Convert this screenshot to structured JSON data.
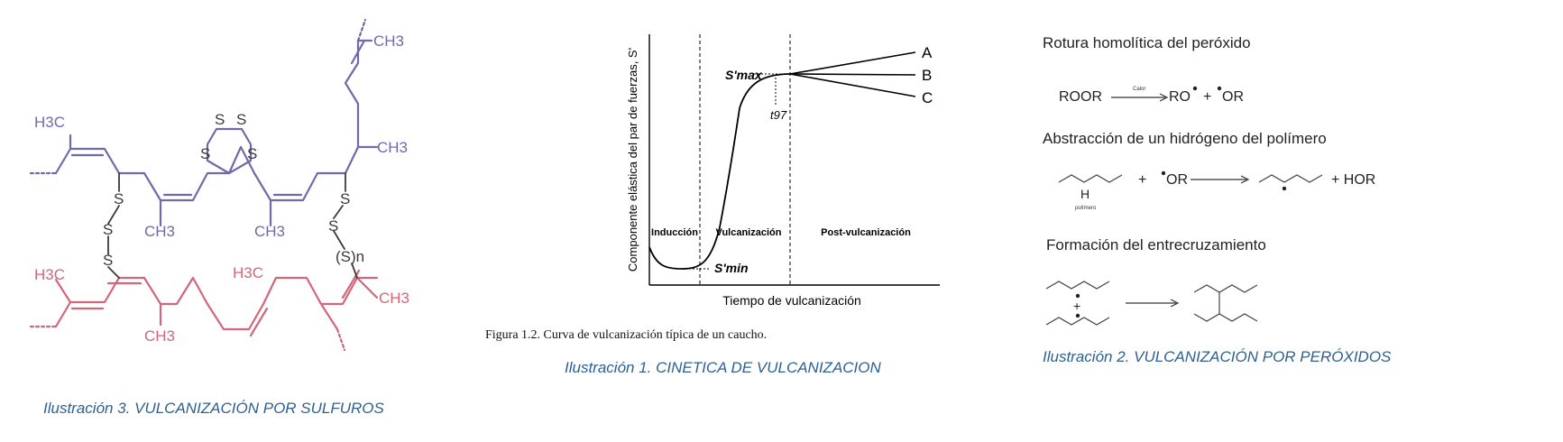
{
  "sulfide": {
    "caption": "Ilustración 3. VULCANIZACIÓN POR SULFUROS",
    "chain_color": "#6f6aa8",
    "rubber_color": "#d2667a",
    "bond_color": "#3a3a3a",
    "labels": {
      "ch3_top": "CH3",
      "h3c_left": "H3C",
      "ch3_right_mid": "CH3",
      "ch3_bottom1": "CH3",
      "ch3_bottom2": "CH3",
      "s": "S",
      "sn": "(S)n",
      "h3c_red_left": "H3C",
      "h3c_red_mid": "H3C",
      "ch3_red_right": "CH3",
      "ch3_red_bottom": "CH3"
    }
  },
  "kinetics": {
    "caption": "Ilustración 1. CINETICA DE VULCANIZACION",
    "figure_caption": "Figura 1.2. Curva de vulcanización típica de un caucho.",
    "chart_data": {
      "type": "line",
      "title": "",
      "xlabel": "Tiempo de vulcanización",
      "ylabel": "Componente elástica del par de fuerzas, S'",
      "regions": [
        "Inducción",
        "Vulcanización",
        "Post-vulcanización"
      ],
      "annotations": {
        "smax": "S'max",
        "smin": "S'min",
        "t97": "t97"
      },
      "series": [
        {
          "name": "A"
        },
        {
          "name": "B"
        },
        {
          "name": "C"
        }
      ]
    }
  },
  "peroxide": {
    "caption": "Ilustración 2. VULCANIZACIÓN POR PERÓXIDOS",
    "step1_title": "Rotura homolítica del peróxido",
    "step1_reactant": "ROOR",
    "step1_condition": "Calor",
    "step1_product1": "RO",
    "step1_plus": "+",
    "step1_product2": "OR",
    "step2_title": "Abstracción de un hidrógeno del polímero",
    "step2_h": "H",
    "step2_polymer": "polímero",
    "step2_plus": "+",
    "step2_reagent": "OR",
    "step2_product": "+ HOR",
    "step3_title": "Formación del entrecruzamiento",
    "step3_plus": "+"
  }
}
